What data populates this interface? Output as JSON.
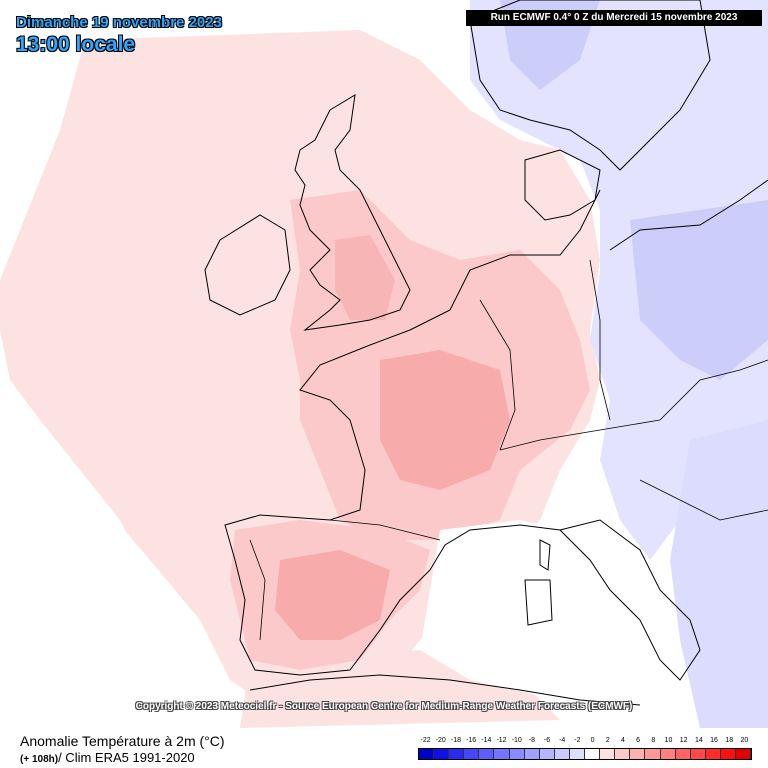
{
  "header": {
    "date": "Dimanche 19 novembre 2023",
    "time": "13:00 locale",
    "run": "Run ECMWF 0.4° 0 Z du Mercredi 15 novembre 2023"
  },
  "copyright": "Copyright © 2023 Meteociel.fr - Source European Centre for Medium-Range Weather Forecasts (ECMWF)",
  "legend": {
    "title": "Anomalie Température à 2m (°C)",
    "lead": "(+ 108h)",
    "clim": "/ Clim ERA5 1991-2020",
    "ticks": [
      "-22",
      "-20",
      "-18",
      "-16",
      "-14",
      "-12",
      "-10",
      "-8",
      "-6",
      "-4",
      "-2",
      "0",
      "2",
      "4",
      "6",
      "8",
      "10",
      "12",
      "14",
      "16",
      "18",
      "20"
    ],
    "colors": [
      "#0000c8",
      "#1010e6",
      "#2a2af5",
      "#4646ff",
      "#5e5eff",
      "#7474ff",
      "#8a8aff",
      "#a0a0ff",
      "#b6b6ff",
      "#cacaff",
      "#dedeff",
      "#ffffff",
      "#ffe0e0",
      "#ffc8c8",
      "#ffb0b0",
      "#ff9898",
      "#ff8080",
      "#ff6464",
      "#ff4848",
      "#ff2c2c",
      "#ff1010",
      "#e00000"
    ]
  },
  "map": {
    "colors": {
      "background": "#ffffff",
      "light_red": "#fde4e4",
      "mid_red": "#fbcaca",
      "strong_red": "#f8adad",
      "light_blue": "#e4e4ff",
      "mid_blue": "#cfcffb",
      "coast": "#000000"
    }
  }
}
